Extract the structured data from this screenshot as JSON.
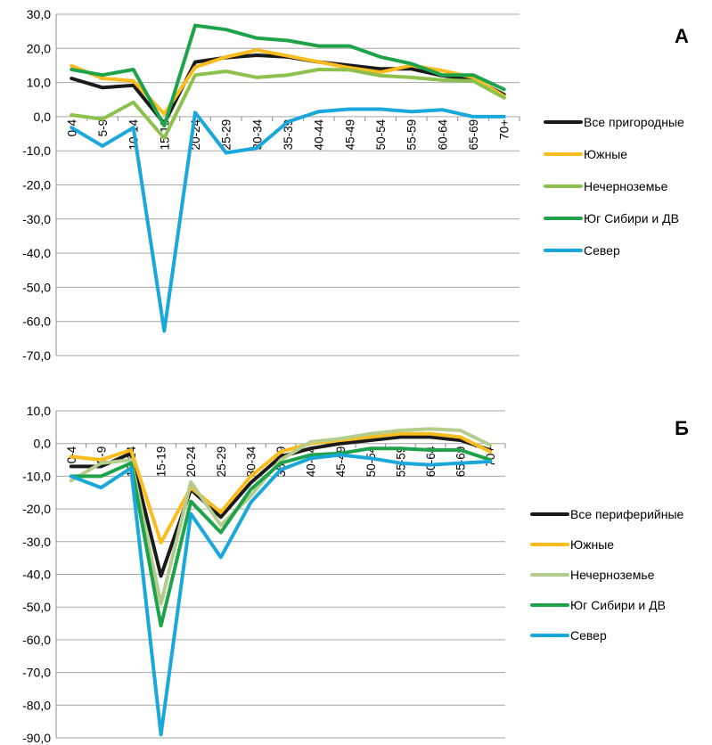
{
  "chart_data": [
    {
      "type": "line",
      "panel_label": "А",
      "categories": [
        "0-4",
        "5-9",
        "10-14",
        "15-19",
        "20-24",
        "25-29",
        "30-34",
        "35-39",
        "40-44",
        "45-49",
        "50-54",
        "55-59",
        "60-64",
        "65-69",
        "70+"
      ],
      "y_tick_labels": [
        "30,0",
        "20,0",
        "10,0",
        "0,0",
        "-10,0",
        "-20,0",
        "-30,0",
        "-40,0",
        "-50,0",
        "-60,0",
        "-70,0"
      ],
      "ylim": [
        -70,
        30
      ],
      "grid": true,
      "legend_position": "right",
      "series": [
        {
          "name": "Все пригородные",
          "color": "#1a1a1a",
          "values": [
            11.2,
            8.5,
            9.2,
            -2.0,
            16.0,
            17.3,
            18.0,
            17.5,
            16.0,
            15.0,
            14.0,
            14.0,
            12.0,
            11.0,
            6.5
          ]
        },
        {
          "name": "Южные",
          "color": "#fbbd1e",
          "values": [
            14.9,
            11.2,
            10.5,
            0.8,
            14.5,
            17.5,
            19.5,
            17.8,
            16.0,
            14.3,
            13.0,
            15.0,
            13.5,
            11.5,
            6.0
          ]
        },
        {
          "name": "Нечерноземье",
          "color": "#8dc14e",
          "values": [
            0.5,
            -0.7,
            4.2,
            -6.3,
            12.2,
            13.3,
            11.5,
            12.2,
            13.8,
            13.7,
            12.0,
            11.5,
            10.7,
            10.5,
            5.5
          ]
        },
        {
          "name": "Юг Сибири и ДВ",
          "color": "#1ea34b",
          "values": [
            13.8,
            12.2,
            13.8,
            -2.7,
            26.7,
            25.5,
            23.0,
            22.3,
            20.7,
            20.7,
            17.5,
            15.5,
            12.2,
            12.2,
            8.0
          ]
        },
        {
          "name": "Север",
          "color": "#1aa7dc",
          "values": [
            -3.2,
            -8.6,
            -3.2,
            -62.8,
            1.2,
            -10.6,
            -9.2,
            -1.5,
            1.5,
            2.2,
            2.2,
            1.5,
            2.0,
            0.0,
            0.0
          ]
        }
      ]
    },
    {
      "type": "line",
      "panel_label": "Б",
      "categories": [
        "0-4",
        "5-9",
        "10-14",
        "15-19",
        "20-24",
        "25-29",
        "30-34",
        "35-39",
        "40-44",
        "45-49",
        "50-54",
        "55-59",
        "60-64",
        "65-69",
        "70+"
      ],
      "y_tick_labels": [
        "10,0",
        "0,0",
        "-10,0",
        "-20,0",
        "-30,0",
        "-40,0",
        "-50,0",
        "-60,0",
        "-70,0",
        "-80,0",
        "-90,0"
      ],
      "ylim": [
        -90,
        10
      ],
      "grid": true,
      "legend_position": "right",
      "series": [
        {
          "name": "Все периферийные",
          "color": "#1a1a1a",
          "values": [
            -7.0,
            -7.0,
            -3.0,
            -40.5,
            -14.0,
            -22.5,
            -12.0,
            -4.0,
            -1.5,
            0.0,
            1.0,
            2.0,
            2.0,
            1.0,
            -2.0
          ]
        },
        {
          "name": "Южные",
          "color": "#fbbd1e",
          "values": [
            -4.0,
            -5.0,
            -2.0,
            -30.3,
            -13.5,
            -21.0,
            -10.0,
            -2.5,
            0.0,
            1.0,
            2.0,
            3.0,
            3.0,
            2.0,
            -2.5
          ]
        },
        {
          "name": "Нечерноземье",
          "color": "#b5cd8c",
          "values": [
            -11.3,
            -6.0,
            -5.0,
            -49.0,
            -11.8,
            -25.0,
            -16.0,
            -5.0,
            0.5,
            1.5,
            3.0,
            4.0,
            4.5,
            4.0,
            -0.5
          ]
        },
        {
          "name": "Юг Сибири и ДВ",
          "color": "#1ea34b",
          "values": [
            -10.0,
            -10.0,
            -6.0,
            -55.7,
            -17.7,
            -27.2,
            -14.0,
            -6.0,
            -3.5,
            -3.0,
            -1.5,
            -1.5,
            -2.0,
            -2.0,
            -5.0
          ]
        },
        {
          "name": "Север",
          "color": "#1aa7dc",
          "values": [
            -10.0,
            -13.5,
            -7.5,
            -89.0,
            -21.5,
            -34.8,
            -18.0,
            -8.0,
            -4.5,
            -3.5,
            -4.5,
            -6.0,
            -6.5,
            -6.0,
            -5.5
          ]
        }
      ]
    }
  ]
}
